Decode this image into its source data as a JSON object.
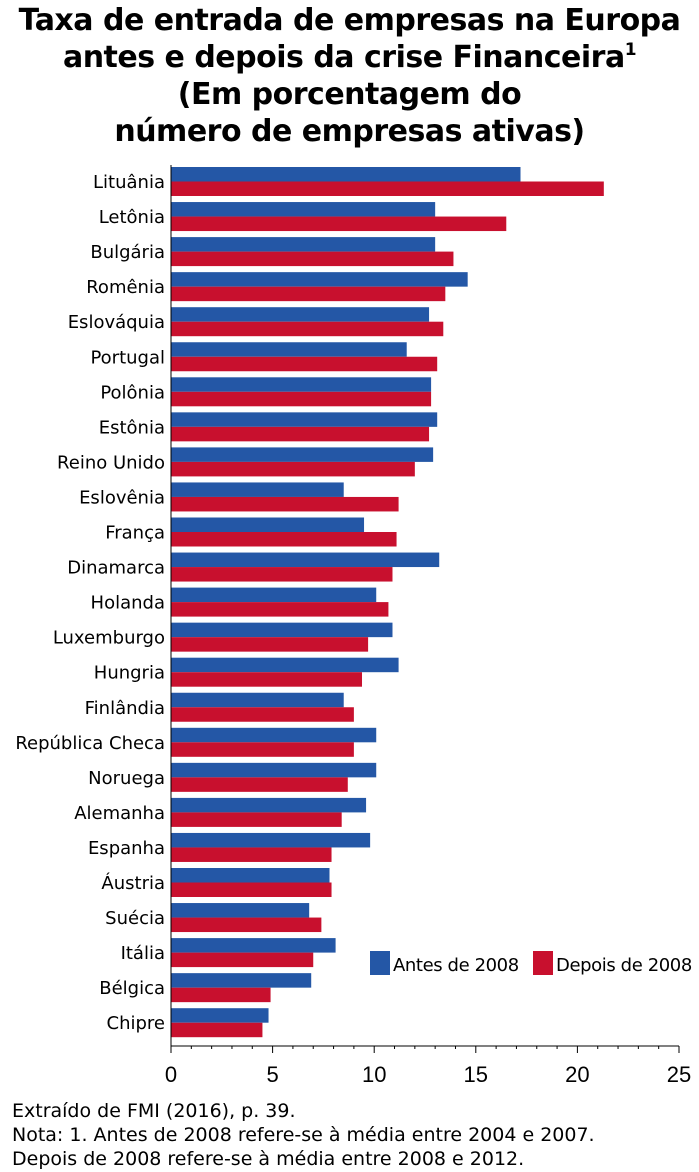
{
  "title": {
    "line1": "Taxa de entrada de empresas na Europa",
    "line2": "antes e depois da crise Financeira",
    "line2_sup": "1",
    "line3": "(Em porcentagem do",
    "line4": "número de empresas ativas)"
  },
  "notes": {
    "source": "Extraído de FMI (2016), p. 39.",
    "note1": "Nota: 1. Antes de 2008 refere-se à média entre 2004 e 2007.",
    "note2": "Depois de 2008 refere-se à média entre 2008 e 2012."
  },
  "chart_data": {
    "type": "bar",
    "orientation": "horizontal",
    "categories": [
      "Lituânia",
      "Letônia",
      "Bulgária",
      "Romênia",
      "Eslováquia",
      "Portugal",
      "Polônia",
      "Estônia",
      "Reino Unido",
      "Eslovênia",
      "França",
      "Dinamarca",
      "Holanda",
      "Luxemburgo",
      "Hungria",
      "Finlândia",
      "República Checa",
      "Noruega",
      "Alemanha",
      "Espanha",
      "Áustria",
      "Suécia",
      "Itália",
      "Bélgica",
      "Chipre"
    ],
    "series": [
      {
        "name": "Antes de 2008",
        "color": "#2457a6",
        "values": [
          17.2,
          13.0,
          13.0,
          14.6,
          12.7,
          11.6,
          12.8,
          13.1,
          12.9,
          8.5,
          9.5,
          13.2,
          10.1,
          10.9,
          11.2,
          8.5,
          10.1,
          10.1,
          9.6,
          9.8,
          7.8,
          6.8,
          8.1,
          6.9,
          4.8
        ]
      },
      {
        "name": "Depois de 2008",
        "color": "#c8102e",
        "values": [
          21.3,
          16.5,
          13.9,
          13.5,
          13.4,
          13.1,
          12.8,
          12.7,
          12.0,
          11.2,
          11.1,
          10.9,
          10.7,
          9.7,
          9.4,
          9.0,
          9.0,
          8.7,
          8.4,
          7.9,
          7.9,
          7.4,
          7.0,
          4.9,
          4.5
        ]
      }
    ],
    "xlim": [
      0,
      25
    ],
    "xticks": [
      "0",
      "5",
      "10",
      "15",
      "20",
      "25"
    ],
    "legend": "bottom-right",
    "grid": false
  }
}
